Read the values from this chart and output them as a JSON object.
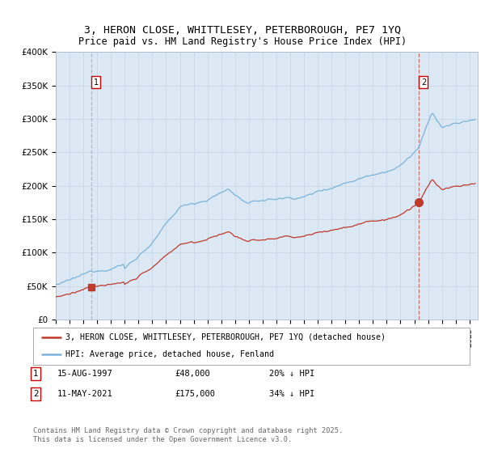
{
  "title_line1": "3, HERON CLOSE, WHITTLESEY, PETERBOROUGH, PE7 1YQ",
  "title_line2": "Price paid vs. HM Land Registry's House Price Index (HPI)",
  "bg_color": "#ffffff",
  "plot_bg_color": "#dce9f5",
  "hpi_color": "#7ab3d9",
  "price_color": "#c0392b",
  "ylim": [
    0,
    400000
  ],
  "yticks": [
    0,
    50000,
    100000,
    150000,
    200000,
    250000,
    300000,
    350000,
    400000
  ],
  "ytick_labels": [
    "£0",
    "£50K",
    "£100K",
    "£150K",
    "£200K",
    "£250K",
    "£300K",
    "£350K",
    "£400K"
  ],
  "legend_label_red": "3, HERON CLOSE, WHITTLESEY, PETERBOROUGH, PE7 1YQ (detached house)",
  "legend_label_blue": "HPI: Average price, detached house, Fenland",
  "transaction1_date": "15-AUG-1997",
  "transaction1_price": "£48,000",
  "transaction1_hpi": "20% ↓ HPI",
  "transaction1_year": 1997.62,
  "transaction1_value": 48000,
  "transaction2_date": "11-MAY-2021",
  "transaction2_price": "£175,000",
  "transaction2_hpi": "34% ↓ HPI",
  "transaction2_year": 2021.37,
  "transaction2_value": 175000,
  "footnote": "Contains HM Land Registry data © Crown copyright and database right 2025.\nThis data is licensed under the Open Government Licence v3.0."
}
